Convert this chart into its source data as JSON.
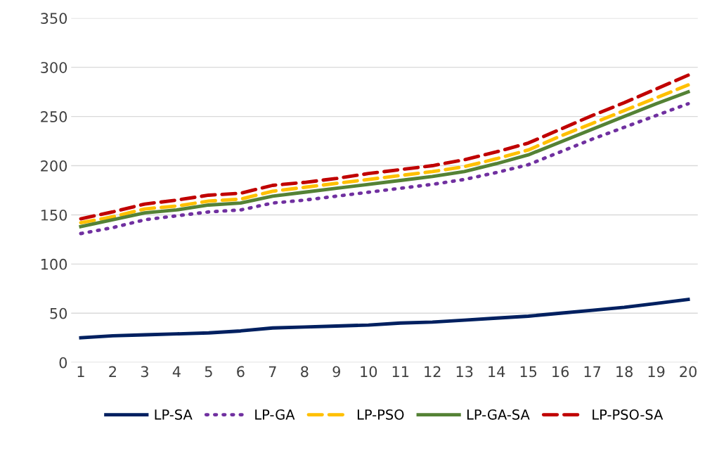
{
  "chart_data": {
    "type": "line",
    "categories": [
      "1",
      "2",
      "3",
      "4",
      "5",
      "6",
      "7",
      "8",
      "9",
      "10",
      "11",
      "12",
      "13",
      "14",
      "15",
      "16",
      "17",
      "18",
      "19",
      "20"
    ],
    "ylim": [
      0,
      350
    ],
    "yticks": [
      0,
      50,
      100,
      150,
      200,
      250,
      300,
      350
    ],
    "grid": "y",
    "legend": "bottom",
    "marker": "none",
    "series": [
      {
        "name": "LP-SA",
        "color": "#002060",
        "line_style": "solid",
        "values": [
          25,
          27,
          28,
          29,
          30,
          32,
          35,
          36,
          37,
          38,
          40,
          41,
          43,
          45,
          47,
          50,
          53,
          56,
          60,
          64
        ]
      },
      {
        "name": "LP-GA",
        "color": "#7030a0",
        "line_style": "dotted",
        "values": [
          131,
          137,
          145,
          149,
          153,
          155,
          162,
          165,
          169,
          173,
          177,
          181,
          186,
          193,
          201,
          214,
          227,
          239,
          251,
          263
        ]
      },
      {
        "name": "LP-PSO",
        "color": "#ffc000",
        "line_style": "dashed",
        "values": [
          142,
          148,
          156,
          159,
          164,
          166,
          174,
          178,
          182,
          186,
          190,
          194,
          199,
          207,
          216,
          230,
          243,
          256,
          269,
          282
        ]
      },
      {
        "name": "LP-GA-SA",
        "color": "#548235",
        "line_style": "solid",
        "values": [
          138,
          145,
          152,
          155,
          160,
          162,
          169,
          173,
          177,
          181,
          185,
          189,
          194,
          202,
          211,
          224,
          237,
          250,
          263,
          275
        ]
      },
      {
        "name": "LP-PSO-SA",
        "color": "#c00000",
        "line_style": "dashed",
        "values": [
          146,
          153,
          161,
          165,
          170,
          172,
          180,
          183,
          187,
          192,
          196,
          200,
          206,
          214,
          223,
          237,
          251,
          264,
          278,
          292
        ]
      }
    ]
  }
}
